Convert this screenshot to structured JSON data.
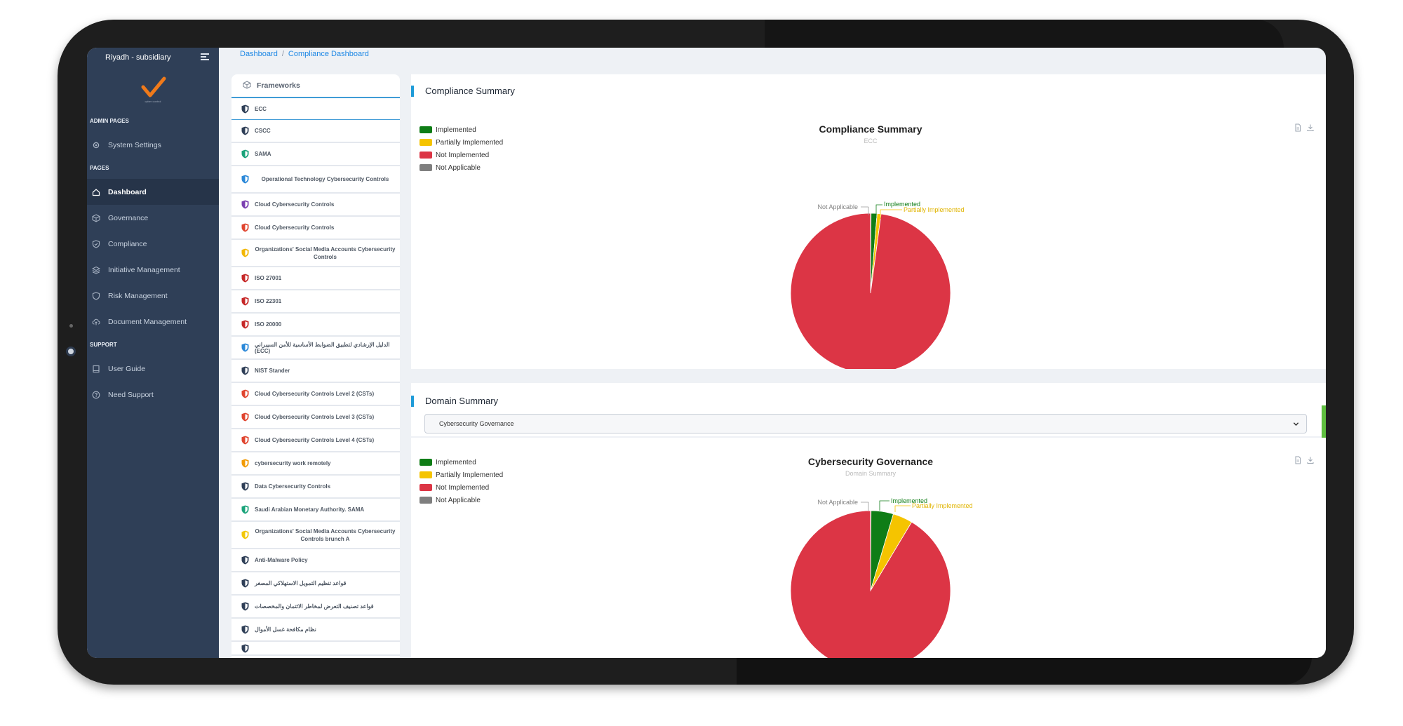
{
  "sidebar": {
    "org": "Riyadh - subsidiary",
    "logo_caption": "cyber control",
    "sections": {
      "admin": "ADMIN PAGES",
      "pages": "PAGES",
      "support": "SUPPORT"
    },
    "items": [
      {
        "label": "System Settings",
        "icon": "gear-icon"
      },
      {
        "label": "Dashboard",
        "icon": "home-icon",
        "active": true
      },
      {
        "label": "Governance",
        "icon": "cube-icon"
      },
      {
        "label": "Compliance",
        "icon": "shield-check-icon"
      },
      {
        "label": "Initiative Management",
        "icon": "layers-icon"
      },
      {
        "label": "Risk Management",
        "icon": "shield-icon"
      },
      {
        "label": "Document Management",
        "icon": "cloud-upload-icon"
      },
      {
        "label": "User Guide",
        "icon": "book-icon"
      },
      {
        "label": "Need Support",
        "icon": "help-circle-icon"
      }
    ]
  },
  "breadcrumb": {
    "home": "Dashboard",
    "separator": "/",
    "current": "Compliance Dashboard"
  },
  "frameworks": {
    "title": "Frameworks",
    "items": [
      {
        "label": "ECC",
        "color": "#2f3f57"
      },
      {
        "label": "CSCC",
        "color": "#2f3f57"
      },
      {
        "label": "SAMA",
        "color": "#1aa37a"
      },
      {
        "label": "Operational Technology Cybersecurity Controls",
        "color": "#2b88d8"
      },
      {
        "label": "Cloud Cybersecurity Controls",
        "color": "#7b3fb0"
      },
      {
        "label": "Cloud Cybersecurity Controls",
        "color": "#e0452f"
      },
      {
        "label": "Organizations' Social Media Accounts Cybersecurity Controls",
        "color": "#f2b705"
      },
      {
        "label": "ISO 27001",
        "color": "#c62828"
      },
      {
        "label": "ISO 22301",
        "color": "#c62828"
      },
      {
        "label": "ISO 20000",
        "color": "#c62828"
      },
      {
        "label": "الدليل الإرشادي لتطبيق الضوابط الأساسية للأمن السيبراني (ECC)",
        "color": "#2b88d8"
      },
      {
        "label": "NIST Stander",
        "color": "#2f3f57"
      },
      {
        "label": "Cloud Cybersecurity Controls Level 2 (CSTs)",
        "color": "#e0452f"
      },
      {
        "label": "Cloud Cybersecurity Controls Level 3 (CSTs)",
        "color": "#e0452f"
      },
      {
        "label": "Cloud Cybersecurity Controls Level 4 (CSTs)",
        "color": "#e0452f"
      },
      {
        "label": "cybersecurity work remotely",
        "color": "#f29b05"
      },
      {
        "label": "Data Cybersecurity Controls",
        "color": "#2f3f57"
      },
      {
        "label": "Saudi Arabian Monetary Authority. SAMA",
        "color": "#1aa37a"
      },
      {
        "label": "Organizations' Social Media Accounts Cybersecurity Controls brunch A",
        "color": "#f2c705"
      },
      {
        "label": "Anti-Malware Policy",
        "color": "#2f3f57"
      },
      {
        "label": "قواعد تنظيم التمويل الاستهلاكي المصغر",
        "color": "#2f3f57"
      },
      {
        "label": "قواعد تصنيف التعرض لمخاطر الائتمان والمخصصات",
        "color": "#2f3f57"
      },
      {
        "label": "نظام مكافحة غسل الأموال",
        "color": "#2f3f57"
      },
      {
        "label": "",
        "color": "#2f3f57"
      }
    ]
  },
  "compliance_summary": {
    "section_title": "Compliance Summary",
    "chart_title": "Compliance Summary",
    "chart_subtitle": "ECC",
    "legend": [
      {
        "label": "Implemented",
        "color": "#0f7d16"
      },
      {
        "label": "Partially Implemented",
        "color": "#f5c400"
      },
      {
        "label": "Not Implemented",
        "color": "#dc3545"
      },
      {
        "label": "Not Applicable",
        "color": "#7f7f7f"
      }
    ]
  },
  "domain_summary": {
    "section_title": "Domain Summary",
    "select_value": "Cybersecurity Governance",
    "chart_title": "Cybersecurity Governance",
    "chart_subtitle": "Domain Summary",
    "legend": [
      {
        "label": "Implemented",
        "color": "#0f7d16"
      },
      {
        "label": "Partially Implemented",
        "color": "#f5c400"
      },
      {
        "label": "Not Implemented",
        "color": "#dc3545"
      },
      {
        "label": "Not Applicable",
        "color": "#7f7f7f"
      }
    ]
  },
  "chart_data": [
    {
      "type": "pie",
      "title": "Compliance Summary",
      "subtitle": "ECC",
      "categories": [
        "Implemented",
        "Partially Implemented",
        "Not Implemented",
        "Not Applicable"
      ],
      "values": [
        1.2,
        0.8,
        97.9,
        0.1
      ],
      "colors": [
        "#0f7d16",
        "#f5c400",
        "#dc3545",
        "#7f7f7f"
      ]
    },
    {
      "type": "pie",
      "title": "Cybersecurity Governance",
      "subtitle": "Domain Summary",
      "categories": [
        "Implemented",
        "Partially Implemented",
        "Not Implemented",
        "Not Applicable"
      ],
      "values": [
        4.5,
        4.0,
        91.4,
        0.1
      ],
      "colors": [
        "#0f7d16",
        "#f5c400",
        "#dc3545",
        "#7f7f7f"
      ]
    }
  ]
}
